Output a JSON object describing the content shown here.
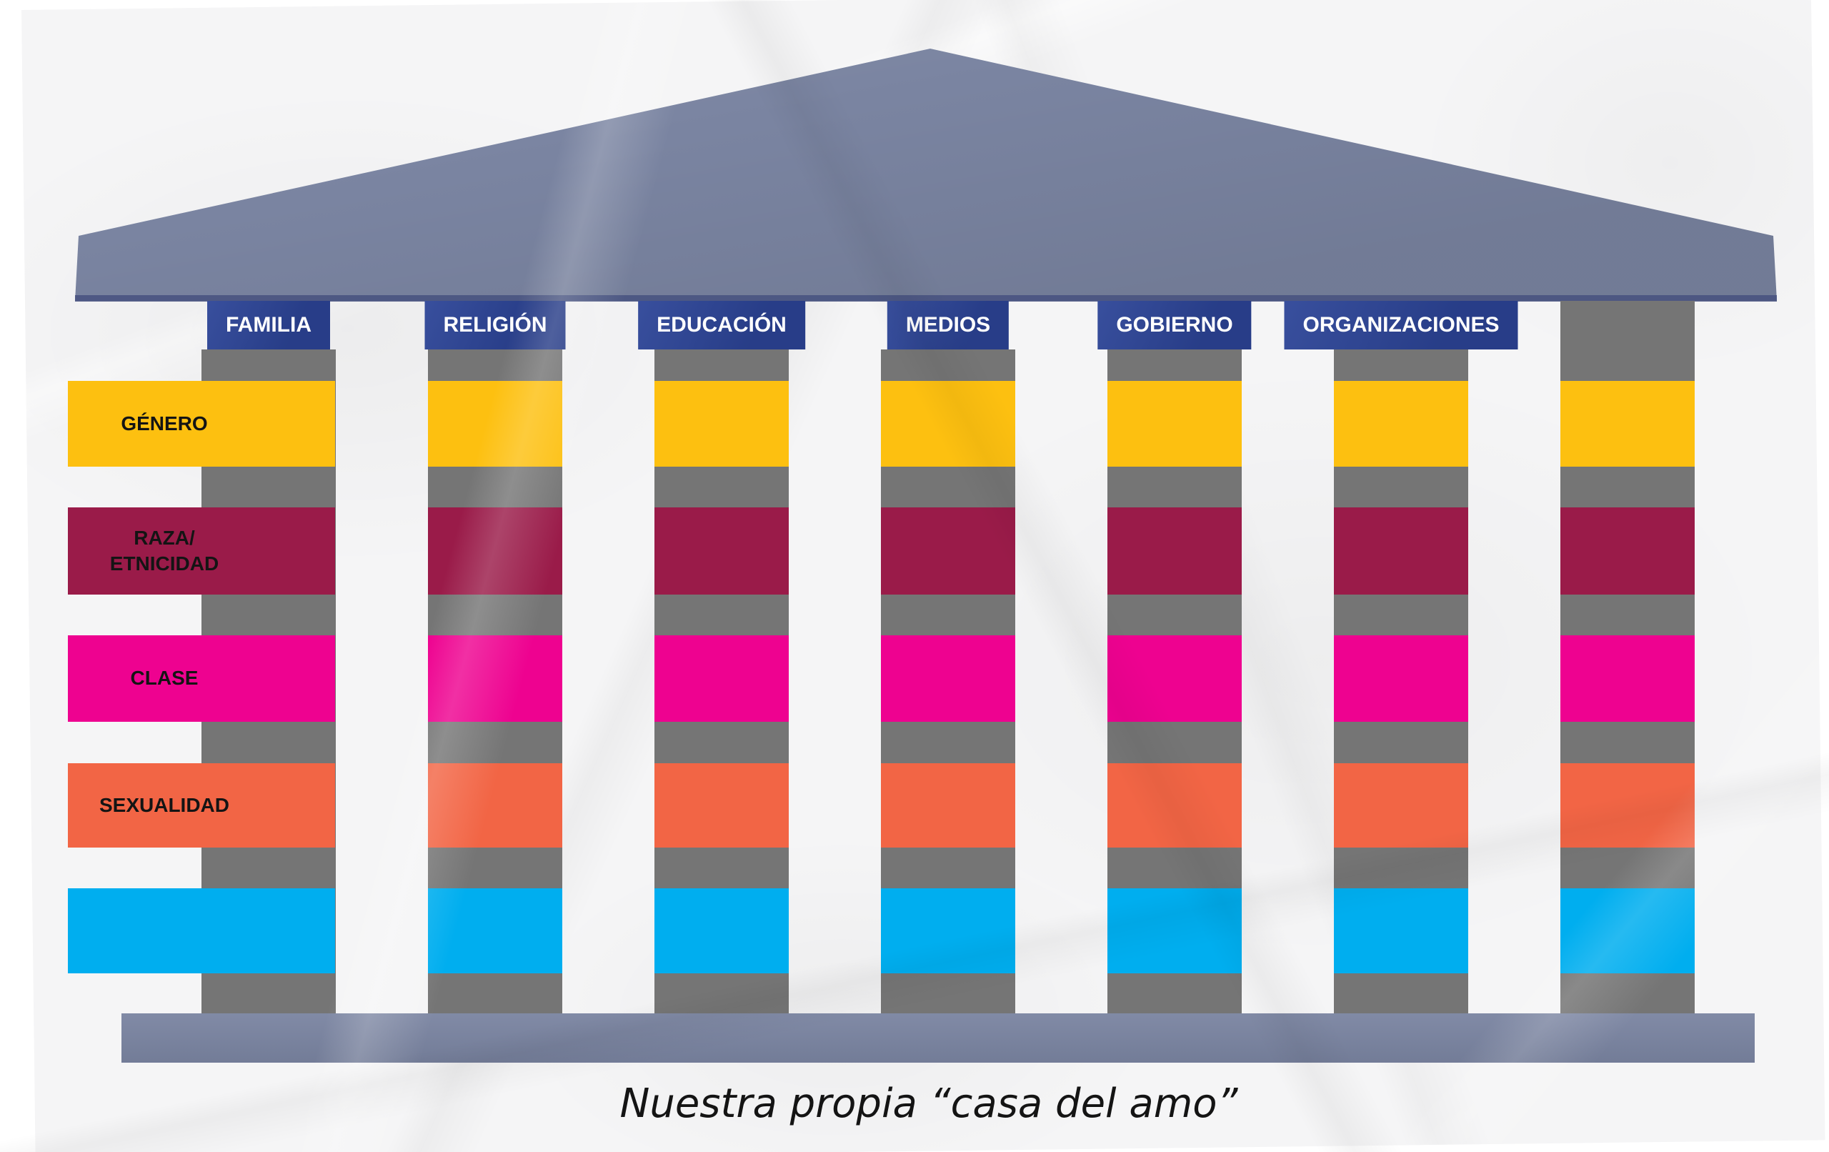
{
  "caption": "Nuestra propia “casa del amo”",
  "columns": [
    {
      "label": "FAMILIA"
    },
    {
      "label": "RELIGIÓN"
    },
    {
      "label": "EDUCACIÓN"
    },
    {
      "label": "MEDIOS"
    },
    {
      "label": "GOBIERNO"
    },
    {
      "label": "ORGANIZACIONES"
    }
  ],
  "rows": [
    {
      "label": "GÉNERO",
      "color": "#FDC010"
    },
    {
      "label": "RAZA/\nETNICIDAD",
      "color": "#9A1B49"
    },
    {
      "label": "CLASE",
      "color": "#EE0290"
    },
    {
      "label": "SEXUALIDAD",
      "color": "#F26545"
    },
    {
      "label": "",
      "color": "#00AEEF"
    }
  ],
  "colors": {
    "paper": "#F5F5F6",
    "roof": "#7A84A1",
    "roof_edge": "#47517F",
    "base": "#7A84A1",
    "pillar": "#757575",
    "header_bg": "#2C4497",
    "header_text": "#FFFFFF",
    "label_text": "#141414",
    "caption_text": "#141414",
    "band_genero": "#FDC010",
    "band_raza": "#9A1B49",
    "band_clase": "#EE0290",
    "band_sexualidad": "#F26545",
    "band_azul": "#00AEEF"
  }
}
